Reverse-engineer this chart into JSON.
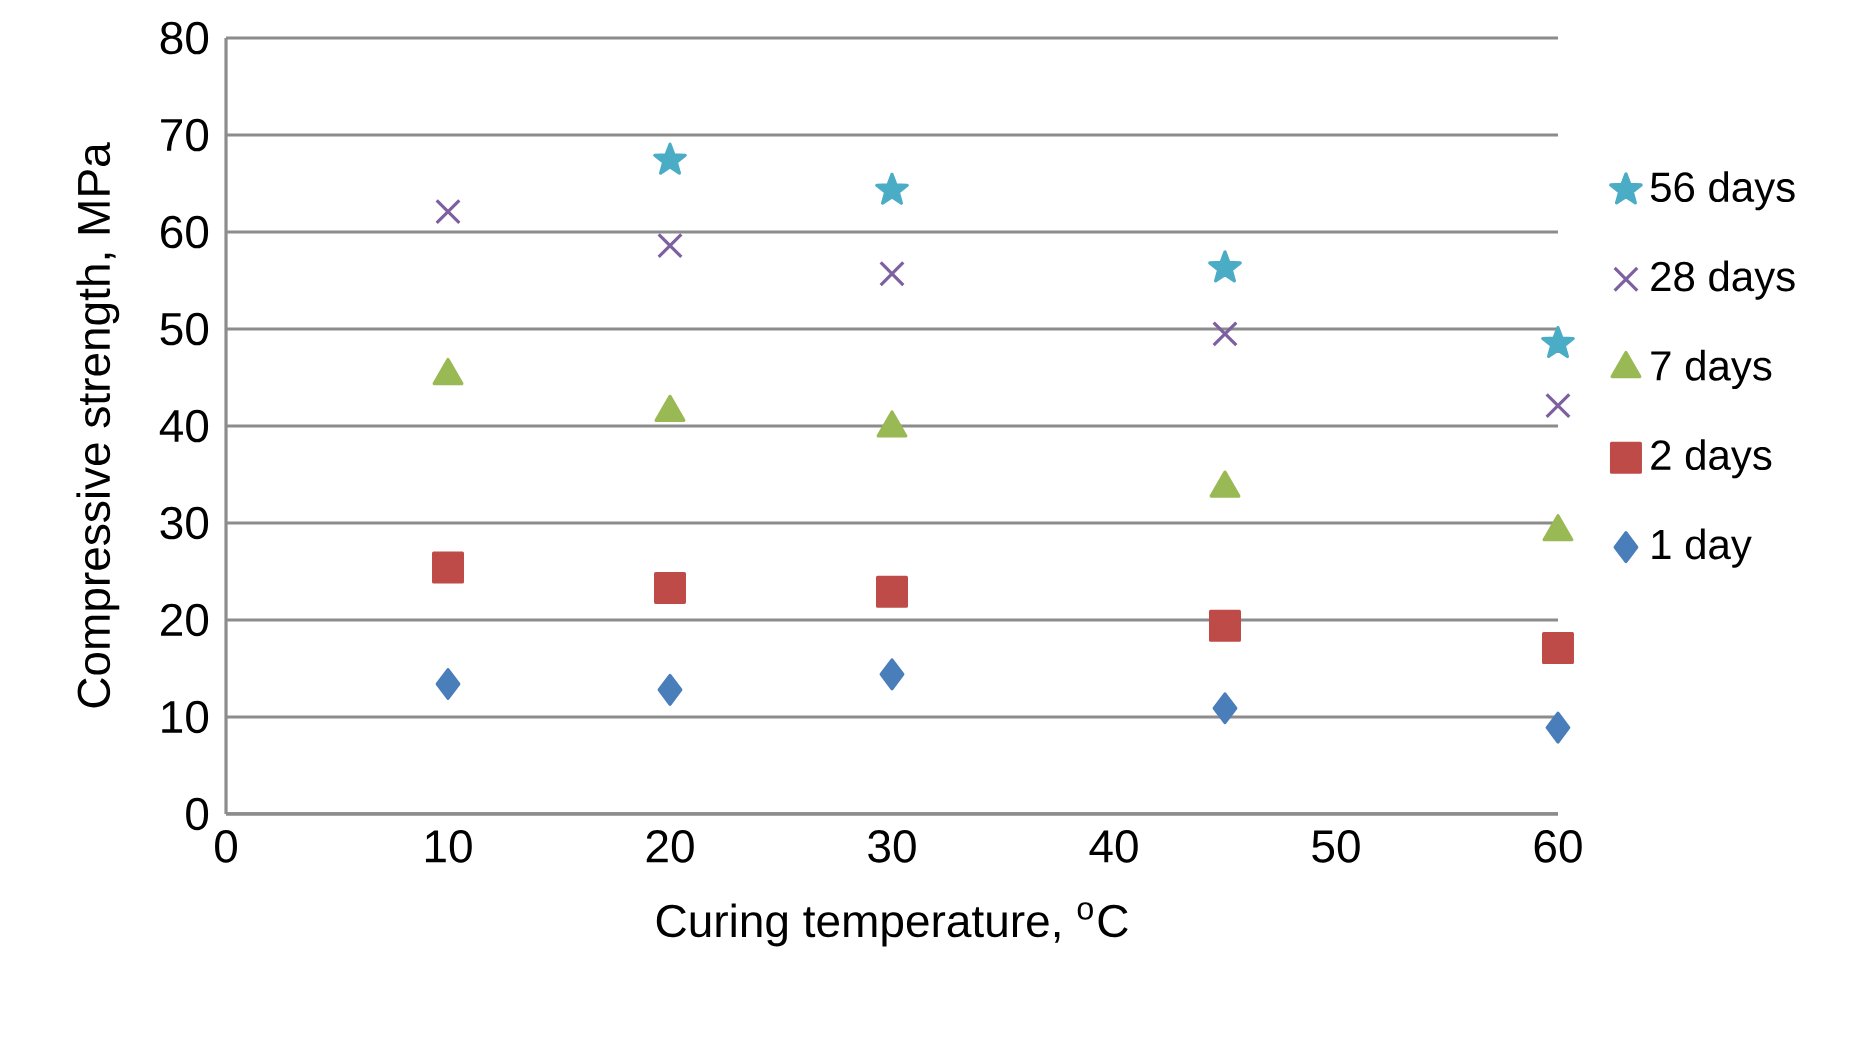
{
  "chart_data": {
    "type": "scatter",
    "xlabel": "Curing temperature, $^{o}$C",
    "ylabel": "Compressive strength, MPa",
    "xlim": [
      0,
      60
    ],
    "xticks": [
      0,
      10,
      20,
      30,
      40,
      50,
      60
    ],
    "ylim": [
      0,
      80
    ],
    "yticks": [
      0,
      10,
      20,
      30,
      40,
      50,
      60,
      70,
      80
    ],
    "grid": "y",
    "legend": "right",
    "series": [
      {
        "name": "1 day",
        "color": "#4a7ebb",
        "marker": "diamond",
        "x": [
          10,
          20,
          30,
          45,
          60
        ],
        "values": [
          13.4,
          12.8,
          14.4,
          10.9,
          8.9
        ]
      },
      {
        "name": "2 days",
        "color": "#be4b48",
        "marker": "square",
        "x": [
          10,
          20,
          30,
          45,
          60
        ],
        "values": [
          25.4,
          23.3,
          22.9,
          19.4,
          17.1
        ]
      },
      {
        "name": "7 days",
        "color": "#98b954",
        "marker": "triangle",
        "x": [
          10,
          20,
          30,
          45,
          60
        ],
        "values": [
          45.2,
          41.4,
          39.8,
          33.6,
          29.1
        ]
      },
      {
        "name": "28 days",
        "color": "#7d60a0",
        "marker": "cross",
        "x": [
          10,
          20,
          30,
          45,
          60
        ],
        "values": [
          62.1,
          58.6,
          55.7,
          49.5,
          42.1
        ]
      },
      {
        "name": "56 days",
        "color": "#4bacc6",
        "marker": "star",
        "x": [
          20,
          30,
          45,
          60
        ],
        "values": [
          67.4,
          64.3,
          56.3,
          48.5
        ]
      }
    ]
  }
}
